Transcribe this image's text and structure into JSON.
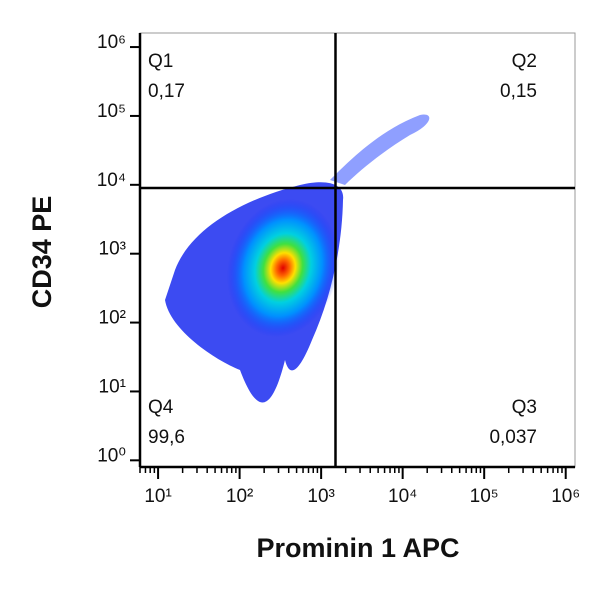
{
  "chart_data": {
    "type": "density",
    "xlabel": "Prominin 1  APC",
    "ylabel": "CD34  PE",
    "xscale": "log",
    "yscale": "log",
    "xlim": [
      6,
      1300000
    ],
    "ylim": [
      0.8,
      1600000
    ],
    "xticks": [
      {
        "value": 10,
        "label": "10¹"
      },
      {
        "value": 100,
        "label": "10²"
      },
      {
        "value": 1000,
        "label": "10³"
      },
      {
        "value": 10000,
        "label": "10⁴"
      },
      {
        "value": 100000,
        "label": "10⁵"
      },
      {
        "value": 1000000,
        "label": "10⁶"
      }
    ],
    "yticks": [
      {
        "value": 1,
        "label": "10⁰"
      },
      {
        "value": 10,
        "label": "10¹"
      },
      {
        "value": 100,
        "label": "10²"
      },
      {
        "value": 1000,
        "label": "10³"
      },
      {
        "value": 10000,
        "label": "10⁴"
      },
      {
        "value": 100000,
        "label": "10⁵"
      },
      {
        "value": 1000000,
        "label": "10⁶"
      }
    ],
    "gates": {
      "x": 1500,
      "y": 9000
    },
    "quadrants": [
      {
        "name": "Q1",
        "label": "0,17"
      },
      {
        "name": "Q2",
        "label": "0,15"
      },
      {
        "name": "Q3",
        "label": "0,037"
      },
      {
        "name": "Q4",
        "label": "99,6"
      }
    ]
  }
}
